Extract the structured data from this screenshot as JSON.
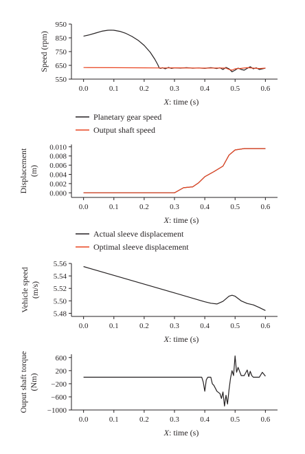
{
  "colors": {
    "dark": "#231f20",
    "red": "#e8431f"
  },
  "chart_data": [
    {
      "type": "line",
      "ylabel": "Speed (rpm)",
      "xlabel": "X: time (s)",
      "xlim": [
        -0.04,
        0.64
      ],
      "ylim": [
        550,
        950
      ],
      "xticks": [
        0.0,
        0.1,
        0.2,
        0.3,
        0.4,
        0.5,
        0.6
      ],
      "xtick_labels": [
        "0.0",
        "0.1",
        "0.2",
        "0.3",
        "0.4",
        "0.5",
        "0.6"
      ],
      "yticks": [
        550,
        650,
        750,
        850,
        950
      ],
      "ytick_labels": [
        "550",
        "650",
        "750",
        "850",
        "950"
      ],
      "series": [
        {
          "name": "Planetary gear speed",
          "color": "#231f20",
          "points": [
            [
              0.0,
              862
            ],
            [
              0.02,
              872
            ],
            [
              0.04,
              885
            ],
            [
              0.06,
              898
            ],
            [
              0.08,
              905
            ],
            [
              0.09,
              906
            ],
            [
              0.1,
              905
            ],
            [
              0.12,
              897
            ],
            [
              0.14,
              882
            ],
            [
              0.16,
              860
            ],
            [
              0.18,
              832
            ],
            [
              0.2,
              795
            ],
            [
              0.22,
              745
            ],
            [
              0.235,
              695
            ],
            [
              0.245,
              655
            ],
            [
              0.25,
              630
            ],
            [
              0.255,
              628
            ],
            [
              0.26,
              633
            ],
            [
              0.27,
              625
            ],
            [
              0.28,
              635
            ],
            [
              0.29,
              628
            ],
            [
              0.3,
              632
            ],
            [
              0.32,
              630
            ],
            [
              0.34,
              633
            ],
            [
              0.36,
              629
            ],
            [
              0.38,
              631
            ],
            [
              0.4,
              628
            ],
            [
              0.42,
              633
            ],
            [
              0.44,
              627
            ],
            [
              0.45,
              632
            ],
            [
              0.46,
              620
            ],
            [
              0.47,
              635
            ],
            [
              0.48,
              625
            ],
            [
              0.49,
              603
            ],
            [
              0.5,
              615
            ],
            [
              0.51,
              630
            ],
            [
              0.52,
              620
            ],
            [
              0.53,
              615
            ],
            [
              0.54,
              628
            ],
            [
              0.55,
              640
            ],
            [
              0.56,
              625
            ],
            [
              0.57,
              632
            ],
            [
              0.58,
              620
            ],
            [
              0.6,
              630
            ]
          ]
        },
        {
          "name": "Output shaft speed",
          "color": "#e8431f",
          "points": [
            [
              0.0,
              634
            ],
            [
              0.1,
              633
            ],
            [
              0.2,
              632
            ],
            [
              0.26,
              631
            ],
            [
              0.3,
              632
            ],
            [
              0.4,
              630
            ],
            [
              0.45,
              631
            ],
            [
              0.47,
              630
            ],
            [
              0.48,
              620
            ],
            [
              0.49,
              615
            ],
            [
              0.5,
              625
            ],
            [
              0.52,
              628
            ],
            [
              0.54,
              633
            ],
            [
              0.56,
              630
            ],
            [
              0.58,
              627
            ],
            [
              0.6,
              630
            ]
          ]
        }
      ],
      "legend": [
        "Planetary gear speed",
        "Output shaft speed"
      ],
      "legend_position": "below"
    },
    {
      "type": "line",
      "ylabel": "Displacement (m)",
      "xlabel": "X: time (s)",
      "xlim": [
        -0.04,
        0.64
      ],
      "ylim": [
        -0.001,
        0.0105
      ],
      "xticks": [
        0.0,
        0.1,
        0.2,
        0.3,
        0.4,
        0.5,
        0.6
      ],
      "xtick_labels": [
        "0.0",
        "0.1",
        "0.2",
        "0.3",
        "0.4",
        "0.5",
        "0.6"
      ],
      "yticks": [
        0.0,
        0.002,
        0.004,
        0.006,
        0.008,
        0.01
      ],
      "ytick_labels": [
        "0.000",
        "0.002",
        "0.004",
        "0.006",
        "0.008",
        "0.010"
      ],
      "series": [
        {
          "name": "Actual sleeve displacement",
          "color": "#231f20",
          "points": [
            [
              0.0,
              0.0
            ],
            [
              0.3,
              0.0
            ],
            [
              0.33,
              0.0011
            ],
            [
              0.36,
              0.0013
            ],
            [
              0.38,
              0.0022
            ],
            [
              0.4,
              0.0035
            ],
            [
              0.43,
              0.0046
            ],
            [
              0.46,
              0.0058
            ],
            [
              0.48,
              0.0082
            ],
            [
              0.5,
              0.0093
            ],
            [
              0.53,
              0.0096
            ],
            [
              0.6,
              0.0096
            ]
          ]
        },
        {
          "name": "Optimal sleeve displacement",
          "color": "#e8431f",
          "points": [
            [
              0.0,
              0.0
            ],
            [
              0.3,
              0.0
            ],
            [
              0.33,
              0.0011
            ],
            [
              0.36,
              0.0013
            ],
            [
              0.38,
              0.0022
            ],
            [
              0.4,
              0.0035
            ],
            [
              0.43,
              0.0046
            ],
            [
              0.46,
              0.0058
            ],
            [
              0.48,
              0.0082
            ],
            [
              0.5,
              0.0093
            ],
            [
              0.53,
              0.0096
            ],
            [
              0.6,
              0.0096
            ]
          ]
        }
      ],
      "legend": [
        "Actual sleeve displacement",
        "Optimal sleeve displacement"
      ],
      "legend_position": "below"
    },
    {
      "type": "line",
      "ylabel": "Vehicle speed (m/s)",
      "xlabel": "X: time (s)",
      "xlim": [
        -0.04,
        0.64
      ],
      "ylim": [
        5.475,
        5.56
      ],
      "xticks": [
        0.0,
        0.1,
        0.2,
        0.3,
        0.4,
        0.5,
        0.6
      ],
      "xtick_labels": [
        "0.0",
        "0.1",
        "0.2",
        "0.3",
        "0.4",
        "0.5",
        "0.6"
      ],
      "yticks": [
        5.48,
        5.5,
        5.52,
        5.54,
        5.56
      ],
      "ytick_labels": [
        "5.48",
        "5.50",
        "5.52",
        "5.54",
        "5.56"
      ],
      "series": [
        {
          "color": "#231f20",
          "points": [
            [
              0.0,
              5.555
            ],
            [
              0.1,
              5.5409
            ],
            [
              0.2,
              5.5268
            ],
            [
              0.3,
              5.5127
            ],
            [
              0.39,
              5.5
            ],
            [
              0.4,
              5.4985
            ],
            [
              0.42,
              5.4962
            ],
            [
              0.44,
              5.495
            ],
            [
              0.46,
              5.4992
            ],
            [
              0.48,
              5.5075
            ],
            [
              0.49,
              5.509
            ],
            [
              0.5,
              5.5075
            ],
            [
              0.52,
              5.5
            ],
            [
              0.54,
              5.4958
            ],
            [
              0.56,
              5.4935
            ],
            [
              0.58,
              5.4892
            ],
            [
              0.6,
              5.4845
            ]
          ]
        }
      ]
    },
    {
      "type": "line",
      "ylabel": "Ouput shaft torque (Nm)",
      "xlabel": "X: time (s)",
      "xlim": [
        -0.04,
        0.64
      ],
      "ylim": [
        -1000,
        700
      ],
      "xticks": [
        0.0,
        0.1,
        0.2,
        0.3,
        0.4,
        0.5,
        0.6
      ],
      "xtick_labels": [
        "0.0",
        "0.1",
        "0.2",
        "0.3",
        "0.4",
        "0.5",
        "0.6"
      ],
      "yticks": [
        -1000,
        -600,
        -200,
        200,
        600
      ],
      "ytick_labels": [
        "−1000",
        "−600",
        "−200",
        "200",
        "600"
      ],
      "series": [
        {
          "color": "#231f20",
          "points": [
            [
              0.0,
              0
            ],
            [
              0.3,
              0
            ],
            [
              0.39,
              0
            ],
            [
              0.395,
              -150
            ],
            [
              0.4,
              -430
            ],
            [
              0.405,
              -80
            ],
            [
              0.41,
              0
            ],
            [
              0.42,
              0
            ],
            [
              0.425,
              -200
            ],
            [
              0.43,
              -250
            ],
            [
              0.44,
              -430
            ],
            [
              0.45,
              -500
            ],
            [
              0.455,
              -650
            ],
            [
              0.46,
              -450
            ],
            [
              0.465,
              -880
            ],
            [
              0.47,
              -550
            ],
            [
              0.475,
              -820
            ],
            [
              0.48,
              -380
            ],
            [
              0.485,
              -30
            ],
            [
              0.49,
              200
            ],
            [
              0.495,
              50
            ],
            [
              0.5,
              650
            ],
            [
              0.505,
              150
            ],
            [
              0.51,
              300
            ],
            [
              0.52,
              50
            ],
            [
              0.53,
              50
            ],
            [
              0.54,
              220
            ],
            [
              0.545,
              20
            ],
            [
              0.55,
              180
            ],
            [
              0.555,
              50
            ],
            [
              0.56,
              0
            ],
            [
              0.58,
              0
            ],
            [
              0.59,
              150
            ],
            [
              0.6,
              30
            ]
          ]
        }
      ]
    }
  ]
}
